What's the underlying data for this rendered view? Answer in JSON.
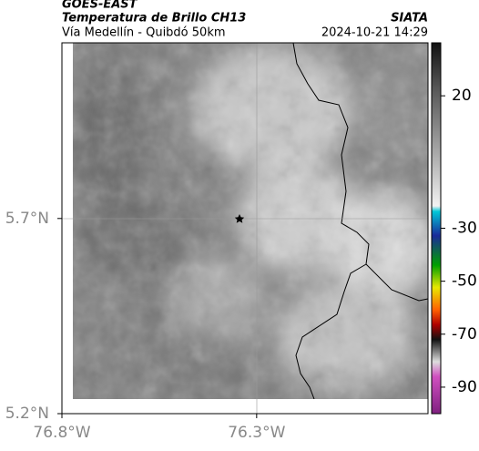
{
  "header": {
    "satellite": "GOES-EAST",
    "title": "Temperatura de Brillo CH13",
    "agency": "SIATA",
    "region": "Vía Medellín - Quibdó 50km",
    "timestamp": "2024-10-21 14:29"
  },
  "map": {
    "xlim": [
      -76.8,
      -75.86
    ],
    "ylim": [
      5.2,
      6.15
    ],
    "xticks": [
      {
        "value": -76.8,
        "label": "76.8°W"
      },
      {
        "value": -76.3,
        "label": "76.3°W"
      }
    ],
    "yticks": [
      {
        "value": 5.2,
        "label": "5.2°N"
      },
      {
        "value": 5.7,
        "label": "5.7°N"
      }
    ]
  },
  "colorbar": {
    "lim": [
      -100,
      40
    ],
    "ticks": [
      20,
      -30,
      -50,
      -70,
      -90
    ]
  }
}
